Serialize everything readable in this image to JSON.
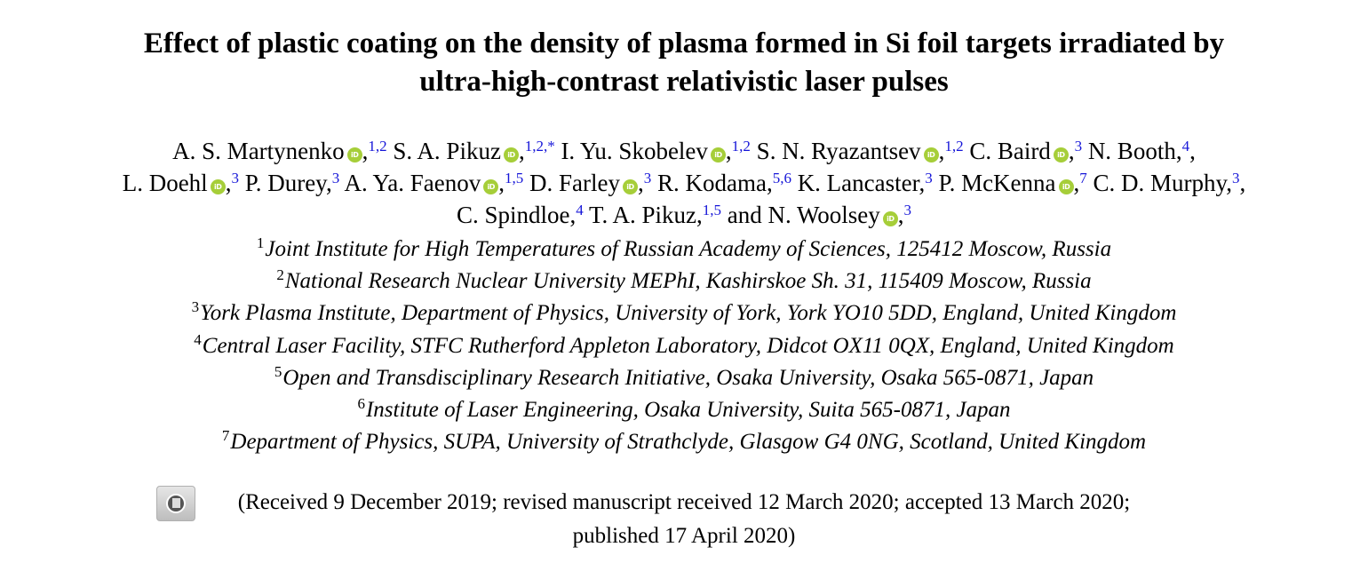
{
  "title": {
    "line1": "Effect of plastic coating on the density of plasma formed in Si foil targets irradiated by",
    "line2": "ultra-high-contrast relativistic laser pulses"
  },
  "authors": [
    {
      "name": "A. S. Martynenko",
      "orcid": true,
      "aff": "1,2",
      "sep": ","
    },
    {
      "name": "S. A. Pikuz",
      "orcid": true,
      "aff": "1,2,*",
      "sep": ","
    },
    {
      "name": "I. Yu. Skobelev",
      "orcid": true,
      "aff": "1,2",
      "sep": ","
    },
    {
      "name": "S. N. Ryazantsev",
      "orcid": true,
      "aff": "1,2",
      "sep": ","
    },
    {
      "name": "C. Baird",
      "orcid": true,
      "aff": "3",
      "sep": ","
    },
    {
      "name": "N. Booth",
      "orcid": false,
      "aff": "4",
      "sep": ","
    },
    {
      "name": "L. Doehl",
      "orcid": true,
      "aff": "3",
      "sep": ","
    },
    {
      "name": "P. Durey",
      "orcid": false,
      "aff": "3",
      "sep": ","
    },
    {
      "name": "A. Ya. Faenov",
      "orcid": true,
      "aff": "1,5",
      "sep": ""
    },
    {
      "name": "D. Farley",
      "orcid": true,
      "aff": "3",
      "sep": ","
    },
    {
      "name": "R. Kodama",
      "orcid": false,
      "aff": "5,6",
      "sep": ","
    },
    {
      "name": "K. Lancaster",
      "orcid": false,
      "aff": "3",
      "sep": ","
    },
    {
      "name": "P. McKenna",
      "orcid": true,
      "aff": "7",
      "sep": ","
    },
    {
      "name": "C. D. Murphy",
      "orcid": false,
      "aff": "3",
      "sep": ","
    },
    {
      "name": "C. Spindloe",
      "orcid": false,
      "aff": "4",
      "sep": ","
    },
    {
      "name": "T. A. Pikuz",
      "orcid": false,
      "aff": "1,5",
      "sep": ","
    },
    {
      "name": "N. Woolsey",
      "orcid": true,
      "aff": "3",
      "sep": "",
      "prefix": "and "
    }
  ],
  "author_lines": [
    [
      0,
      1,
      2,
      3,
      4,
      5
    ],
    [
      6,
      7,
      8,
      9,
      10,
      11,
      12,
      13
    ],
    [
      14,
      15,
      16
    ]
  ],
  "affiliations": [
    {
      "num": "1",
      "text": "Joint Institute for High Temperatures of Russian Academy of Sciences, 125412 Moscow, Russia"
    },
    {
      "num": "2",
      "text": "National Research Nuclear University MEPhI, Kashirskoe Sh. 31, 115409 Moscow, Russia"
    },
    {
      "num": "3",
      "text": "York Plasma Institute, Department of Physics, University of York, York YO10 5DD, England, United Kingdom"
    },
    {
      "num": "4",
      "text": "Central Laser Facility, STFC Rutherford Appleton Laboratory, Didcot OX11 0QX, England, United Kingdom"
    },
    {
      "num": "5",
      "text": "Open and Transdisciplinary Research Initiative, Osaka University, Osaka 565-0871, Japan"
    },
    {
      "num": "6",
      "text": "Institute of Laser Engineering, Osaka University, Suita 565-0871, Japan"
    },
    {
      "num": "7",
      "text": "Department of Physics, SUPA, University of Strathclyde, Glasgow G4 0NG, Scotland, United Kingdom"
    }
  ],
  "dates": {
    "line1": "(Received 9 December 2019; revised manuscript received 12 March 2020; accepted 13 March 2020;",
    "line2": "published 17 April 2020)"
  },
  "orcid_icon_text": "iD",
  "colors": {
    "orcid": "#a6ce39",
    "affiliation_link": "#1515d8"
  }
}
